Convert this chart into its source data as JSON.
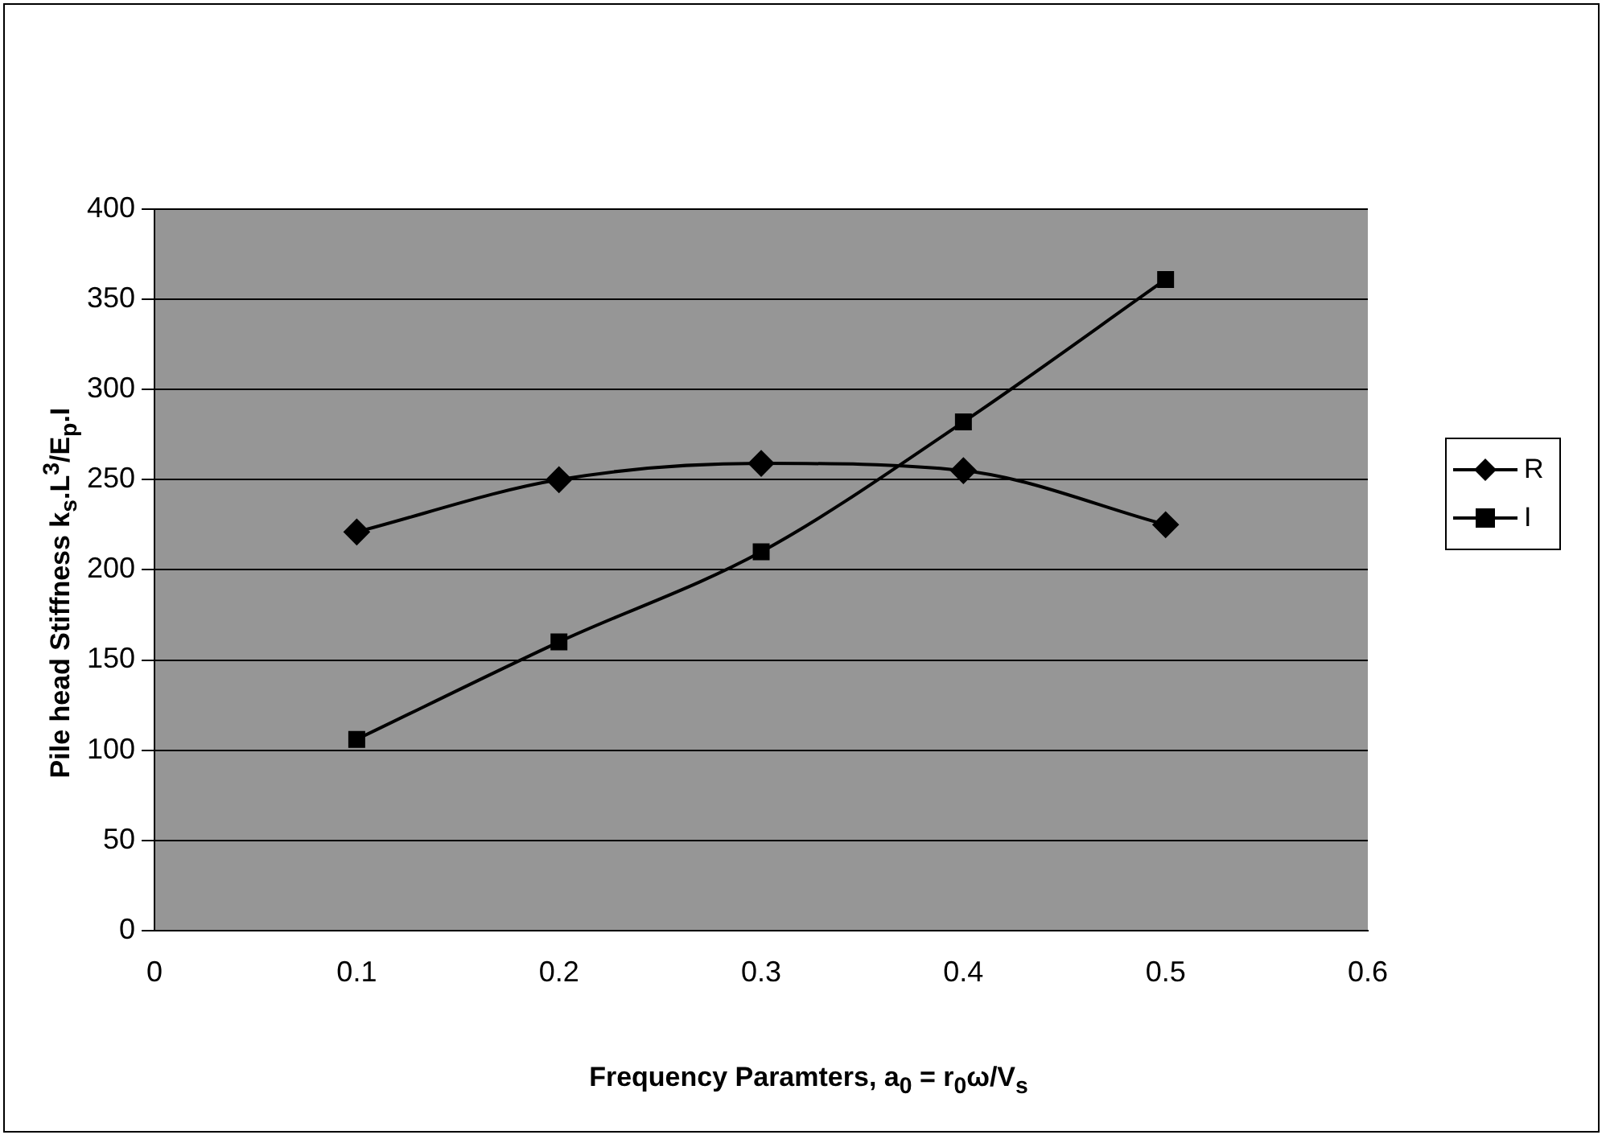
{
  "chart_data": {
    "type": "line",
    "xlabel": "Frequency Paramters,     a$_{0}$ = r$_{0}$ω/V$_{s}$",
    "ylabel": "Pile head Stiffness    k$_{s}$.L$^{3}$/E$_{p}$.I",
    "x": [
      0.1,
      0.2,
      0.3,
      0.4,
      0.5
    ],
    "series": [
      {
        "name": "R",
        "color": "#000000",
        "marker": "diamond",
        "values": [
          221,
          250,
          259,
          255,
          225
        ]
      },
      {
        "name": "I",
        "color": "#000000",
        "marker": "square",
        "values": [
          106,
          160,
          210,
          282,
          361
        ]
      }
    ],
    "xlim": [
      0,
      0.6
    ],
    "xticks": [
      0,
      0.1,
      0.2,
      0.3,
      0.4,
      0.5,
      0.6
    ],
    "ylim": [
      0,
      400
    ],
    "yticks": [
      0,
      50,
      100,
      150,
      200,
      250,
      300,
      350,
      400
    ],
    "grid": "y",
    "legend": "right",
    "line_style": "solid"
  }
}
